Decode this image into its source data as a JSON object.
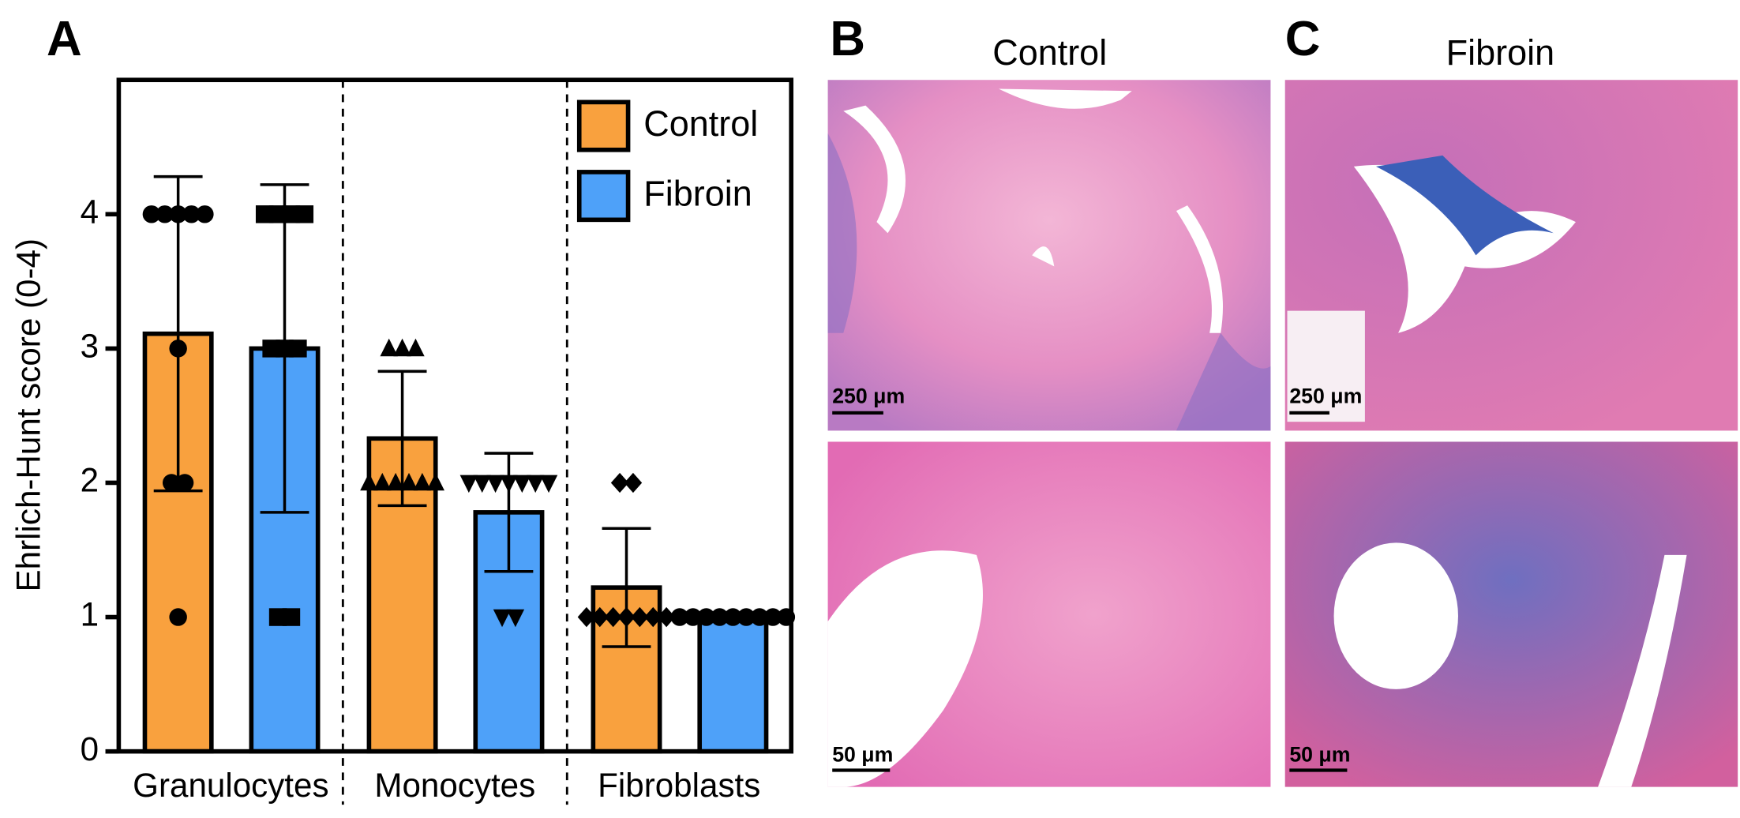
{
  "chart_data": {
    "type": "bar",
    "panel": "A",
    "ylabel": "Ehrlich-Hunt score (0-4)",
    "categories": [
      "Granulocytes",
      "Monocytes",
      "Fibroblasts"
    ],
    "ylim": [
      0,
      5
    ],
    "yticks": [
      0,
      1,
      2,
      3,
      4
    ],
    "legend": "top-right",
    "series": [
      {
        "name": "Control",
        "color": "#F9A13E",
        "values": [
          3.11,
          2.33,
          1.22
        ],
        "errors": [
          1.17,
          0.5,
          0.44
        ],
        "markers": [
          "circle",
          "triangle-up",
          "diamond"
        ],
        "points": [
          [
            4,
            4,
            4,
            4,
            4,
            3,
            2,
            2,
            1
          ],
          [
            3,
            3,
            3,
            2,
            2,
            2,
            2,
            2,
            2
          ],
          [
            2,
            2,
            1,
            1,
            1,
            1,
            1,
            1,
            1
          ]
        ]
      },
      {
        "name": "Fibroin",
        "color": "#4EA1F9",
        "values": [
          3.0,
          1.78,
          1.0
        ],
        "errors": [
          1.22,
          0.44,
          0
        ],
        "markers": [
          "square",
          "triangle-down",
          "circle"
        ],
        "points": [
          [
            4,
            4,
            4,
            4,
            3,
            3,
            3,
            1,
            1
          ],
          [
            2,
            2,
            2,
            2,
            2,
            2,
            2,
            1,
            1
          ],
          [
            1,
            1,
            1,
            1,
            1,
            1,
            1,
            1,
            1
          ]
        ]
      }
    ]
  },
  "panels": [
    {
      "letter": "B",
      "title": "Control",
      "scale_top": "250 μm",
      "scale_bottom": "50 μm"
    },
    {
      "letter": "C",
      "title": "Fibroin",
      "scale_top": "250 μm",
      "scale_bottom": "50 μm"
    }
  ]
}
